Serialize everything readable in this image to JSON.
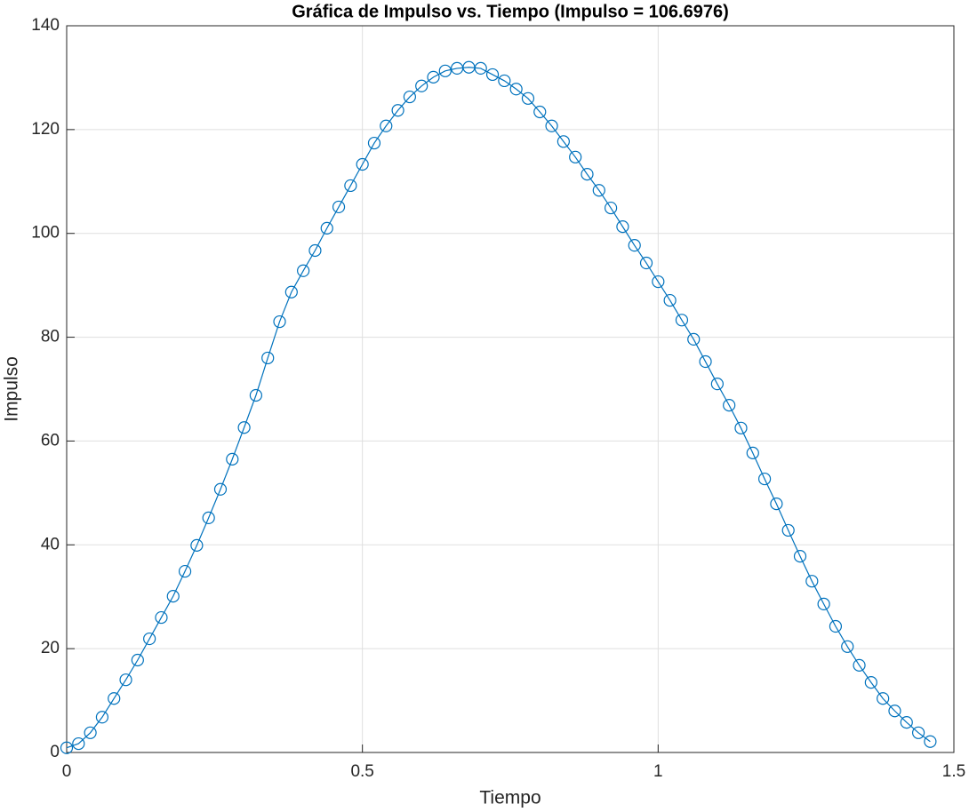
{
  "chart_data": {
    "type": "line",
    "title": "Gráfica de Impulso vs. Tiempo (Impulso = 106.6976)",
    "x_label": "Tiempo",
    "y_label": "Impulso",
    "x": [
      0,
      0.02,
      0.04,
      0.06,
      0.08,
      0.1,
      0.12,
      0.14,
      0.16,
      0.18,
      0.2,
      0.22,
      0.24,
      0.26,
      0.28,
      0.3,
      0.32,
      0.34,
      0.36,
      0.38,
      0.4,
      0.42,
      0.44,
      0.46,
      0.48,
      0.5,
      0.52,
      0.54,
      0.56,
      0.58,
      0.6,
      0.62,
      0.64,
      0.66,
      0.68,
      0.7,
      0.72,
      0.74,
      0.76,
      0.78,
      0.8,
      0.82,
      0.84,
      0.86,
      0.88,
      0.9,
      0.92,
      0.94,
      0.96,
      0.98,
      1,
      1.02,
      1.04,
      1.06,
      1.08,
      1.1,
      1.12,
      1.14,
      1.16,
      1.18,
      1.2,
      1.22,
      1.24,
      1.26,
      1.28,
      1.3,
      1.32,
      1.34,
      1.36,
      1.38,
      1.4,
      1.42,
      1.44,
      1.46
    ],
    "series": [
      {
        "color": "#0072bd",
        "marker": "circle",
        "values": [
          0.9,
          1.7,
          3.8,
          6.8,
          10.4,
          14.0,
          17.8,
          21.9,
          26.0,
          30.1,
          34.9,
          39.9,
          45.2,
          50.7,
          56.5,
          62.6,
          68.8,
          76.0,
          83.0,
          88.7,
          92.8,
          96.7,
          101.0,
          105.1,
          109.2,
          113.3,
          117.4,
          120.7,
          123.7,
          126.3,
          128.4,
          130.1,
          131.3,
          131.8,
          132.0,
          131.8,
          130.6,
          129.4,
          127.8,
          126.0,
          123.4,
          120.7,
          117.7,
          114.7,
          111.4,
          108.3,
          104.9,
          101.3,
          97.7,
          94.3,
          90.7,
          87.1,
          83.3,
          79.6,
          75.3,
          71.0,
          66.9,
          62.5,
          57.7,
          52.7,
          47.9,
          42.8,
          37.8,
          33.0,
          28.6,
          24.3,
          20.4,
          16.8,
          13.5,
          10.4,
          8.0,
          5.8,
          3.8,
          2.1
        ]
      }
    ],
    "xlim": [
      0,
      1.5
    ],
    "xticks": [
      0,
      0.5,
      1,
      1.5
    ],
    "ylim": [
      0,
      140
    ],
    "yticks": [
      0,
      20,
      40,
      60,
      80,
      100,
      120,
      140
    ],
    "grid": true
  }
}
